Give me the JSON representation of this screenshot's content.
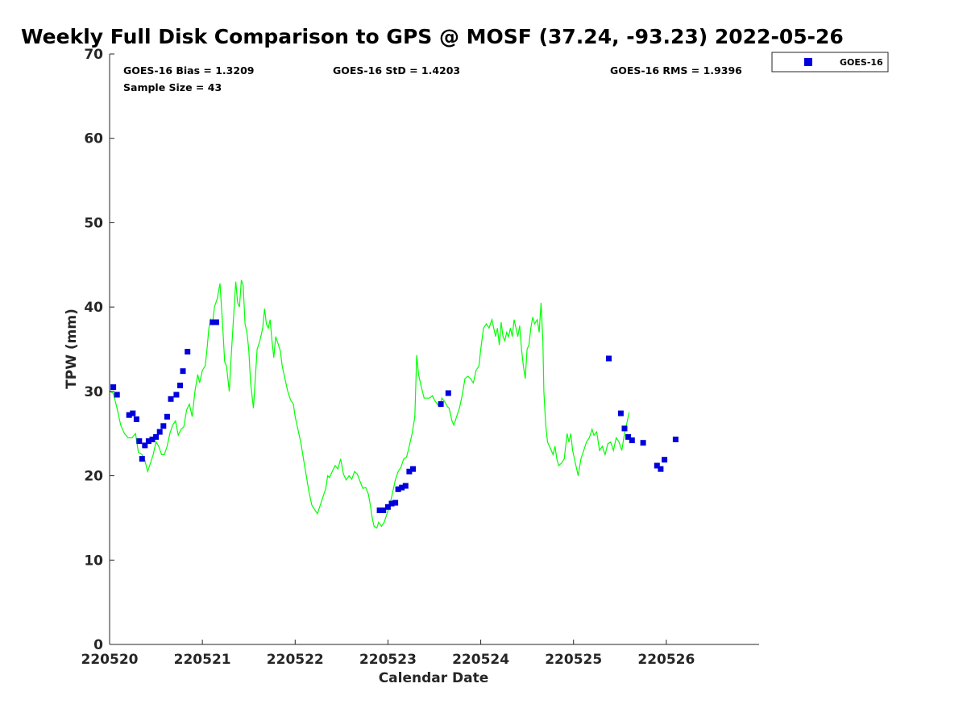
{
  "chart_data": {
    "type": "line",
    "title": "Weekly Full Disk Comparison to GPS @ MOSF (37.24, -93.23) 2022-05-26",
    "xlabel": "Calendar Date",
    "ylabel": "TPW (mm)",
    "xlim": [
      220520,
      220527
    ],
    "ylim": [
      0,
      70
    ],
    "x_tick_values": [
      0,
      1,
      2,
      3,
      4,
      5,
      6
    ],
    "x_tick_labels": [
      "220520",
      "220521",
      "220522",
      "220523",
      "220524",
      "220525",
      "220526"
    ],
    "y_ticks": [
      0,
      10,
      20,
      30,
      40,
      50,
      60,
      70
    ],
    "stats": {
      "bias": "GOES-16 Bias = 1.3209",
      "std": "GOES-16 StD = 1.4203",
      "rms": "GOES-16 RMS = 1.9396",
      "sample_size": "Sample Size = 43"
    },
    "legend": {
      "label": "GOES-16",
      "location": "top-right, outside plot"
    },
    "series": [
      {
        "name": "GPS",
        "style": "line",
        "color": "#00ff00",
        "points": [
          [
            0.0,
            30.0
          ],
          [
            0.04,
            29.8
          ],
          [
            0.08,
            28.0
          ],
          [
            0.12,
            26.0
          ],
          [
            0.16,
            25.0
          ],
          [
            0.2,
            24.5
          ],
          [
            0.24,
            24.5
          ],
          [
            0.28,
            25.0
          ],
          [
            0.31,
            22.8
          ],
          [
            0.35,
            22.5
          ],
          [
            0.38,
            21.8
          ],
          [
            0.41,
            20.5
          ],
          [
            0.44,
            21.5
          ],
          [
            0.47,
            22.5
          ],
          [
            0.5,
            24.0
          ],
          [
            0.53,
            23.5
          ],
          [
            0.56,
            22.5
          ],
          [
            0.59,
            22.5
          ],
          [
            0.62,
            23.5
          ],
          [
            0.65,
            25.0
          ],
          [
            0.68,
            26.0
          ],
          [
            0.71,
            26.5
          ],
          [
            0.74,
            24.8
          ],
          [
            0.77,
            25.5
          ],
          [
            0.8,
            25.8
          ],
          [
            0.83,
            27.8
          ],
          [
            0.86,
            28.5
          ],
          [
            0.89,
            27.0
          ],
          [
            0.92,
            30.0
          ],
          [
            0.95,
            32.0
          ],
          [
            0.97,
            31.0
          ],
          [
            1.0,
            32.5
          ],
          [
            1.03,
            33.0
          ],
          [
            1.05,
            35.0
          ],
          [
            1.07,
            37.5
          ],
          [
            1.09,
            38.5
          ],
          [
            1.11,
            38.0
          ],
          [
            1.13,
            40.0
          ],
          [
            1.16,
            41.0
          ],
          [
            1.19,
            42.8
          ],
          [
            1.22,
            37.5
          ],
          [
            1.24,
            33.5
          ],
          [
            1.26,
            33.0
          ],
          [
            1.29,
            30.0
          ],
          [
            1.31,
            34.0
          ],
          [
            1.34,
            39.5
          ],
          [
            1.36,
            43.0
          ],
          [
            1.38,
            40.5
          ],
          [
            1.4,
            40.0
          ],
          [
            1.42,
            43.2
          ],
          [
            1.44,
            42.5
          ],
          [
            1.46,
            38.0
          ],
          [
            1.48,
            37.0
          ],
          [
            1.5,
            35.0
          ],
          [
            1.52,
            31.0
          ],
          [
            1.55,
            28.0
          ],
          [
            1.57,
            31.5
          ],
          [
            1.59,
            35.0
          ],
          [
            1.62,
            36.0
          ],
          [
            1.65,
            37.5
          ],
          [
            1.67,
            39.8
          ],
          [
            1.69,
            38.0
          ],
          [
            1.71,
            37.5
          ],
          [
            1.73,
            38.5
          ],
          [
            1.75,
            36.0
          ],
          [
            1.77,
            34.0
          ],
          [
            1.79,
            36.5
          ],
          [
            1.82,
            35.5
          ],
          [
            1.84,
            34.8
          ],
          [
            1.86,
            33.0
          ],
          [
            1.89,
            31.5
          ],
          [
            1.92,
            30.0
          ],
          [
            1.95,
            29.0
          ],
          [
            1.98,
            28.5
          ],
          [
            2.0,
            27.0
          ],
          [
            2.03,
            25.5
          ],
          [
            2.06,
            24.0
          ],
          [
            2.09,
            22.0
          ],
          [
            2.12,
            20.0
          ],
          [
            2.15,
            18.0
          ],
          [
            2.18,
            16.5
          ],
          [
            2.21,
            16.0
          ],
          [
            2.24,
            15.5
          ],
          [
            2.27,
            16.5
          ],
          [
            2.3,
            17.5
          ],
          [
            2.33,
            18.5
          ],
          [
            2.35,
            20.0
          ],
          [
            2.37,
            19.8
          ],
          [
            2.4,
            20.5
          ],
          [
            2.43,
            21.2
          ],
          [
            2.46,
            20.8
          ],
          [
            2.49,
            22.0
          ],
          [
            2.52,
            20.2
          ],
          [
            2.55,
            19.5
          ],
          [
            2.58,
            20.0
          ],
          [
            2.61,
            19.6
          ],
          [
            2.64,
            20.5
          ],
          [
            2.67,
            20.2
          ],
          [
            2.7,
            19.3
          ],
          [
            2.73,
            18.5
          ],
          [
            2.76,
            18.6
          ],
          [
            2.79,
            17.8
          ],
          [
            2.81,
            16.5
          ],
          [
            2.83,
            15.0
          ],
          [
            2.85,
            14.0
          ],
          [
            2.88,
            13.8
          ],
          [
            2.9,
            14.5
          ],
          [
            2.93,
            14.0
          ],
          [
            2.96,
            14.5
          ],
          [
            2.99,
            15.5
          ],
          [
            3.02,
            16.5
          ],
          [
            3.05,
            18.0
          ],
          [
            3.08,
            19.5
          ],
          [
            3.11,
            20.5
          ],
          [
            3.14,
            21.0
          ],
          [
            3.17,
            22.0
          ],
          [
            3.2,
            22.2
          ],
          [
            3.23,
            23.5
          ],
          [
            3.26,
            25.0
          ],
          [
            3.29,
            27.0
          ],
          [
            3.31,
            34.3
          ],
          [
            3.33,
            32.0
          ],
          [
            3.36,
            30.5
          ],
          [
            3.39,
            29.2
          ],
          [
            3.42,
            29.2
          ],
          [
            3.45,
            29.2
          ],
          [
            3.48,
            29.5
          ],
          [
            3.5,
            29.0
          ],
          [
            3.53,
            28.5
          ],
          [
            3.56,
            28.2
          ],
          [
            3.58,
            29.2
          ],
          [
            3.61,
            28.8
          ],
          [
            3.64,
            28.2
          ],
          [
            3.66,
            28.0
          ],
          [
            3.69,
            26.5
          ],
          [
            3.71,
            26.0
          ],
          [
            3.74,
            27.0
          ],
          [
            3.77,
            28.0
          ],
          [
            3.8,
            29.5
          ],
          [
            3.83,
            31.5
          ],
          [
            3.86,
            31.8
          ],
          [
            3.89,
            31.5
          ],
          [
            3.92,
            31.0
          ],
          [
            3.95,
            32.5
          ],
          [
            3.98,
            33.0
          ],
          [
            4.0,
            35.0
          ],
          [
            4.03,
            37.5
          ],
          [
            4.06,
            38.0
          ],
          [
            4.09,
            37.5
          ],
          [
            4.12,
            38.5
          ],
          [
            4.14,
            37.5
          ],
          [
            4.16,
            36.5
          ],
          [
            4.18,
            37.5
          ],
          [
            4.2,
            35.5
          ],
          [
            4.22,
            38.2
          ],
          [
            4.24,
            36.5
          ],
          [
            4.26,
            36.0
          ],
          [
            4.28,
            37.0
          ],
          [
            4.3,
            36.5
          ],
          [
            4.32,
            37.5
          ],
          [
            4.34,
            36.5
          ],
          [
            4.36,
            38.5
          ],
          [
            4.38,
            37.5
          ],
          [
            4.4,
            36.5
          ],
          [
            4.42,
            37.8
          ],
          [
            4.44,
            35.0
          ],
          [
            4.46,
            33.0
          ],
          [
            4.48,
            31.5
          ],
          [
            4.5,
            35.0
          ],
          [
            4.52,
            35.5
          ],
          [
            4.54,
            37.5
          ],
          [
            4.56,
            38.8
          ],
          [
            4.58,
            38.0
          ],
          [
            4.61,
            38.5
          ],
          [
            4.63,
            37.0
          ],
          [
            4.65,
            40.5
          ],
          [
            4.67,
            36.0
          ],
          [
            4.68,
            30.0
          ],
          [
            4.7,
            26.0
          ],
          [
            4.72,
            24.0
          ],
          [
            4.74,
            23.5
          ],
          [
            4.76,
            23.0
          ],
          [
            4.78,
            22.5
          ],
          [
            4.8,
            23.5
          ],
          [
            4.82,
            22.0
          ],
          [
            4.84,
            21.2
          ],
          [
            4.87,
            21.5
          ],
          [
            4.9,
            22.0
          ],
          [
            4.93,
            25.0
          ],
          [
            4.95,
            24.0
          ],
          [
            4.97,
            25.0
          ],
          [
            4.99,
            23.0
          ],
          [
            5.02,
            21.5
          ],
          [
            5.05,
            20.0
          ],
          [
            5.08,
            22.0
          ],
          [
            5.11,
            23.0
          ],
          [
            5.14,
            24.0
          ],
          [
            5.17,
            24.5
          ],
          [
            5.2,
            25.5
          ],
          [
            5.22,
            24.8
          ],
          [
            5.25,
            25.2
          ],
          [
            5.28,
            23.0
          ],
          [
            5.31,
            23.5
          ],
          [
            5.34,
            22.5
          ],
          [
            5.37,
            23.8
          ],
          [
            5.4,
            24.0
          ],
          [
            5.43,
            23.0
          ],
          [
            5.46,
            24.5
          ],
          [
            5.49,
            24.0
          ],
          [
            5.52,
            23.0
          ],
          [
            5.55,
            25.0
          ],
          [
            5.58,
            26.5
          ],
          [
            5.6,
            27.5
          ]
        ]
      },
      {
        "name": "GOES-16",
        "style": "square-marker",
        "color": "#0000dd",
        "points": [
          [
            0.04,
            30.5
          ],
          [
            0.08,
            29.6
          ],
          [
            0.21,
            27.2
          ],
          [
            0.25,
            27.4
          ],
          [
            0.29,
            26.7
          ],
          [
            0.32,
            24.1
          ],
          [
            0.35,
            22.0
          ],
          [
            0.38,
            23.6
          ],
          [
            0.42,
            24.1
          ],
          [
            0.46,
            24.3
          ],
          [
            0.5,
            24.6
          ],
          [
            0.54,
            25.2
          ],
          [
            0.58,
            25.9
          ],
          [
            0.62,
            27.0
          ],
          [
            0.66,
            29.1
          ],
          [
            0.72,
            29.6
          ],
          [
            0.76,
            30.7
          ],
          [
            0.79,
            32.4
          ],
          [
            0.84,
            34.7
          ],
          [
            1.11,
            38.2
          ],
          [
            1.15,
            38.2
          ],
          [
            2.91,
            15.9
          ],
          [
            2.95,
            15.9
          ],
          [
            3.0,
            16.3
          ],
          [
            3.04,
            16.7
          ],
          [
            3.08,
            16.8
          ],
          [
            3.11,
            18.4
          ],
          [
            3.15,
            18.6
          ],
          [
            3.19,
            18.8
          ],
          [
            3.23,
            20.5
          ],
          [
            3.27,
            20.8
          ],
          [
            3.57,
            28.5
          ],
          [
            3.65,
            29.8
          ],
          [
            5.38,
            33.9
          ],
          [
            5.51,
            27.4
          ],
          [
            5.55,
            25.6
          ],
          [
            5.59,
            24.6
          ],
          [
            5.63,
            24.2
          ],
          [
            5.75,
            23.9
          ],
          [
            5.9,
            21.2
          ],
          [
            5.94,
            20.8
          ],
          [
            5.98,
            21.9
          ],
          [
            6.1,
            24.3
          ]
        ]
      }
    ]
  }
}
